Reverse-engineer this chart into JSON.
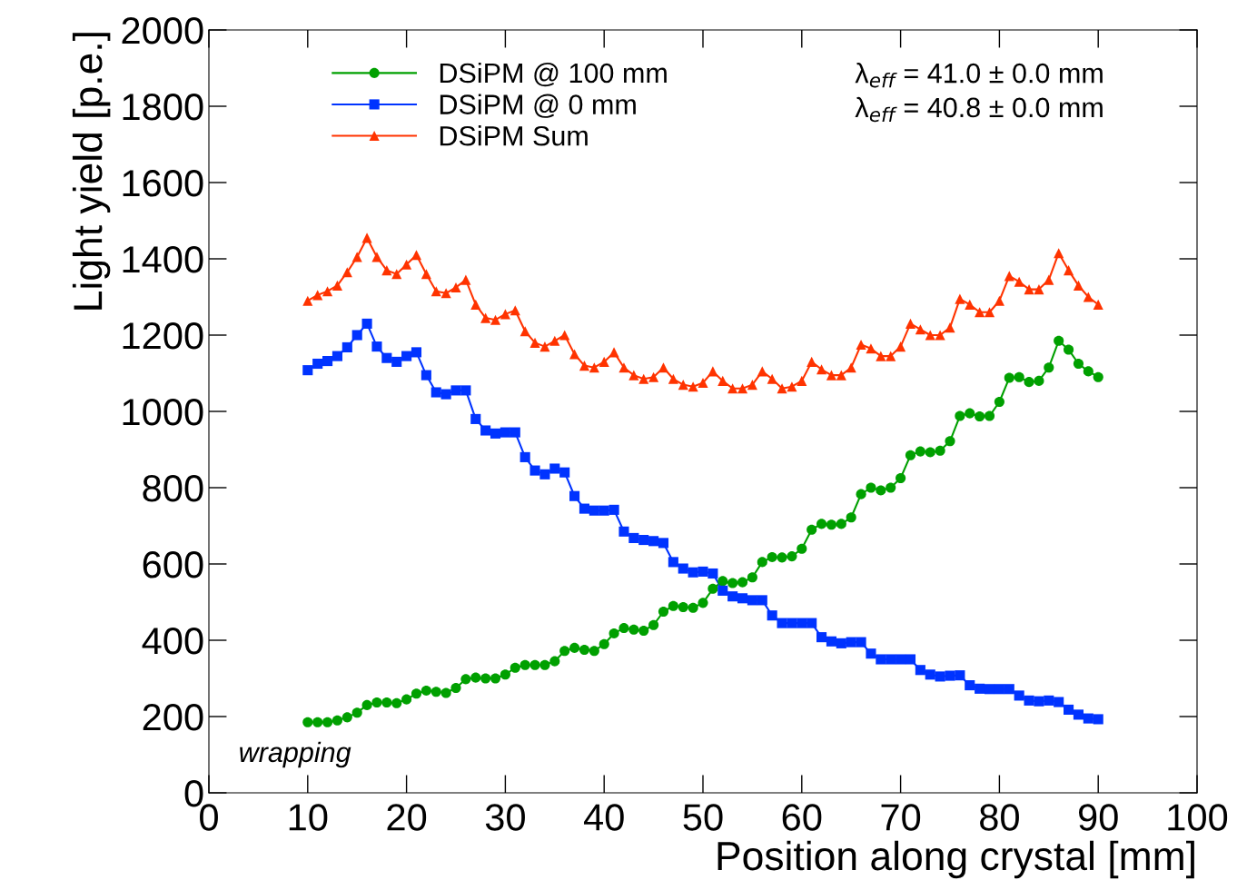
{
  "chart_data": {
    "type": "line",
    "xlabel": "Position along crystal [mm]",
    "ylabel": "Light yield [p.e.]",
    "xlim": [
      0,
      100
    ],
    "xticks": [
      0,
      10,
      20,
      30,
      40,
      50,
      60,
      70,
      80,
      90,
      100
    ],
    "ylim": [
      0,
      2000
    ],
    "yticks": [
      0,
      200,
      400,
      600,
      800,
      1000,
      1200,
      1400,
      1600,
      1800,
      2000
    ],
    "x": [
      10,
      11,
      12,
      13,
      14,
      15,
      16,
      17,
      18,
      19,
      20,
      21,
      22,
      23,
      24,
      25,
      26,
      27,
      28,
      29,
      30,
      31,
      32,
      33,
      34,
      35,
      36,
      37,
      38,
      39,
      40,
      41,
      42,
      43,
      44,
      45,
      46,
      47,
      48,
      49,
      50,
      51,
      52,
      53,
      54,
      55,
      56,
      57,
      58,
      59,
      60,
      61,
      62,
      63,
      64,
      65,
      66,
      67,
      68,
      69,
      70,
      71,
      72,
      73,
      74,
      75,
      76,
      77,
      78,
      79,
      80,
      81,
      82,
      83,
      84,
      85,
      86,
      87,
      88,
      89,
      90
    ],
    "legend": "top left",
    "grid": false,
    "series": [
      {
        "name": "DSiPM @ 100 mm",
        "color": "#00a000",
        "marker": "circle",
        "values": [
          185,
          185,
          185,
          190,
          198,
          210,
          230,
          237,
          237,
          235,
          245,
          260,
          268,
          265,
          262,
          275,
          298,
          302,
          300,
          300,
          310,
          328,
          335,
          335,
          335,
          345,
          372,
          380,
          375,
          372,
          390,
          418,
          432,
          428,
          425,
          440,
          475,
          490,
          487,
          485,
          498,
          535,
          555,
          550,
          552,
          565,
          605,
          618,
          617,
          620,
          640,
          690,
          705,
          703,
          705,
          722,
          783,
          800,
          793,
          800,
          825,
          885,
          895,
          893,
          897,
          922,
          988,
          995,
          987,
          988,
          1025,
          1088,
          1090,
          1077,
          1080,
          1115,
          1185,
          1162,
          1125,
          1105,
          1090
        ]
      },
      {
        "name": "DSiPM @ 0 mm",
        "color": "#0033ff",
        "marker": "square",
        "values": [
          1108,
          1125,
          1132,
          1145,
          1168,
          1200,
          1230,
          1170,
          1140,
          1130,
          1145,
          1155,
          1095,
          1050,
          1045,
          1055,
          1055,
          980,
          950,
          942,
          945,
          945,
          880,
          845,
          835,
          850,
          840,
          778,
          745,
          740,
          740,
          742,
          685,
          668,
          663,
          660,
          655,
          605,
          588,
          578,
          580,
          575,
          530,
          515,
          510,
          505,
          505,
          465,
          445,
          445,
          445,
          445,
          408,
          397,
          392,
          395,
          395,
          365,
          350,
          350,
          350,
          350,
          322,
          310,
          305,
          307,
          308,
          282,
          273,
          272,
          272,
          272,
          255,
          242,
          240,
          242,
          238,
          218,
          205,
          195,
          193
        ]
      },
      {
        "name": "DSiPM Sum",
        "color": "#ff3300",
        "marker": "triangle",
        "values": [
          1290,
          1305,
          1315,
          1330,
          1365,
          1405,
          1455,
          1405,
          1370,
          1360,
          1385,
          1410,
          1360,
          1315,
          1310,
          1325,
          1345,
          1280,
          1245,
          1240,
          1255,
          1265,
          1210,
          1180,
          1170,
          1185,
          1200,
          1150,
          1120,
          1115,
          1130,
          1155,
          1115,
          1095,
          1085,
          1090,
          1115,
          1085,
          1070,
          1065,
          1075,
          1105,
          1080,
          1060,
          1060,
          1070,
          1105,
          1085,
          1060,
          1065,
          1080,
          1130,
          1110,
          1095,
          1095,
          1115,
          1175,
          1165,
          1145,
          1145,
          1170,
          1230,
          1215,
          1200,
          1200,
          1220,
          1295,
          1280,
          1260,
          1260,
          1290,
          1355,
          1340,
          1320,
          1320,
          1345,
          1415,
          1370,
          1330,
          1300,
          1280
        ]
      }
    ],
    "annotations": [
      "λ$_{eff}$ = 41.0 ± 0.0 mm",
      "λ$_{eff}$ = 40.8 ± 0.0 mm",
      "wrapping"
    ]
  }
}
